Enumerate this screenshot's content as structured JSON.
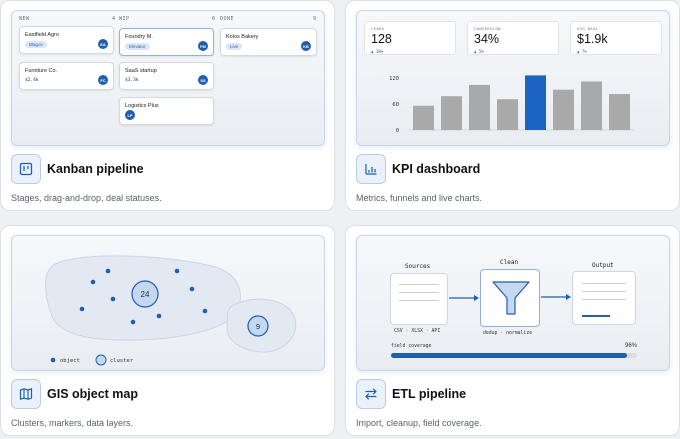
{
  "cards": {
    "kanban": {
      "title": "Kanban pipeline",
      "description": "Stages, drag-and-drop, deal statuses.",
      "icon": "kanban-board-icon",
      "columns": [
        {
          "name": "NEW",
          "count": "4"
        },
        {
          "name": "WIP",
          "count": "6"
        },
        {
          "name": "DONE",
          "count": "9"
        }
      ],
      "deals": [
        {
          "name": "Eastfield Agro",
          "tag": "Blagov",
          "avatar": "EA"
        },
        {
          "name": "Furniture Co.",
          "value": "$2.4k",
          "avatar": "FC"
        },
        {
          "name": "Foundry M.",
          "tag": "Elevator",
          "avatar": "FM"
        },
        {
          "name": "SaaS startup",
          "value": "$3.3k",
          "avatar": "SS"
        },
        {
          "name": "Logistics Plus",
          "avatar": "LP"
        },
        {
          "name": "Kolos Bakery",
          "tag": "Live",
          "avatar": "KB"
        }
      ]
    },
    "kpi": {
      "title": "KPI dashboard",
      "description": "Metrics, funnels and live charts.",
      "icon": "bar-chart-icon",
      "metrics": [
        {
          "label": "LEADS",
          "value": "128",
          "delta": "▲ 18%"
        },
        {
          "label": "CONVERSION",
          "value": "34%",
          "delta": "▲ 5%"
        },
        {
          "label": "AVG DEAL",
          "value": "$1.9k",
          "delta": "▲ 7%"
        }
      ],
      "ticks": [
        "120",
        "60",
        "0"
      ]
    },
    "gis": {
      "title": "GIS object map",
      "description": "Clusters, markers, data layers.",
      "icon": "map-icon",
      "clusters": [
        "24",
        "9"
      ],
      "legend": {
        "object": "object",
        "cluster": "cluster"
      }
    },
    "etl": {
      "title": "ETL pipeline",
      "description": "Import, cleanup, field coverage.",
      "icon": "swap-arrows-icon",
      "stages": {
        "sources": "Sources",
        "clean": "Clean",
        "output": "Output",
        "sources_sub": "CSV · XLSX · API",
        "clean_sub": "dedup · normalize"
      },
      "coverage": {
        "label": "field coverage",
        "value": "96%",
        "fraction": 0.96
      }
    }
  },
  "chart_data": {
    "type": "bar",
    "categories": [
      "",
      "",
      "",
      "",
      "",
      "",
      "",
      ""
    ],
    "values": [
      56,
      78,
      104,
      71,
      126,
      93,
      112,
      83
    ],
    "highlight_index": 4,
    "ylim": [
      0,
      120
    ],
    "yticks": [
      "120",
      "60",
      "0"
    ],
    "colors": {
      "bar": "#a9a9a9",
      "highlight": "#1c64c0"
    }
  },
  "colors": {
    "accent": "#1f5fae",
    "card_border": "#dde1e6"
  }
}
